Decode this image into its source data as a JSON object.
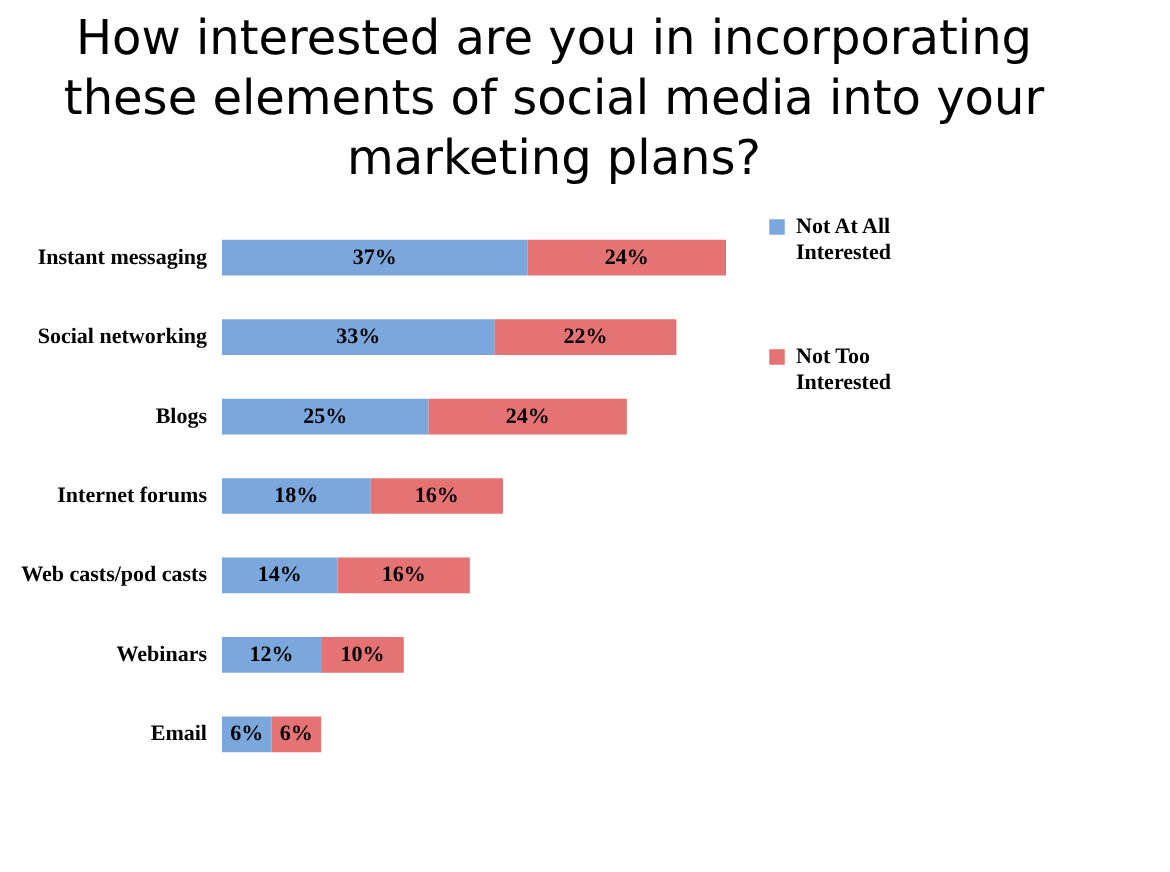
{
  "chart_data": {
    "type": "bar",
    "orientation": "horizontal",
    "stacked": true,
    "title": "How interested are you in incorporating these elements of social media into your marketing plans?",
    "categories": [
      "Instant messaging",
      "Social networking",
      "Blogs",
      "Internet forums",
      "Web casts/pod casts",
      "Webinars",
      "Email"
    ],
    "series": [
      {
        "name": "Not At All Interested",
        "color": "#7ba7dd",
        "values": [
          37,
          33,
          25,
          18,
          14,
          12,
          6
        ],
        "value_labels": [
          "37%",
          "33%",
          "25%",
          "18%",
          "14%",
          "12%",
          "6%"
        ]
      },
      {
        "name": "Not Too Interested",
        "color": "#e57373",
        "values": [
          24,
          22,
          24,
          16,
          16,
          10,
          6
        ],
        "value_labels": [
          "24%",
          "22%",
          "24%",
          "16%",
          "16%",
          "10%",
          "6%"
        ]
      }
    ],
    "legend": "right"
  }
}
